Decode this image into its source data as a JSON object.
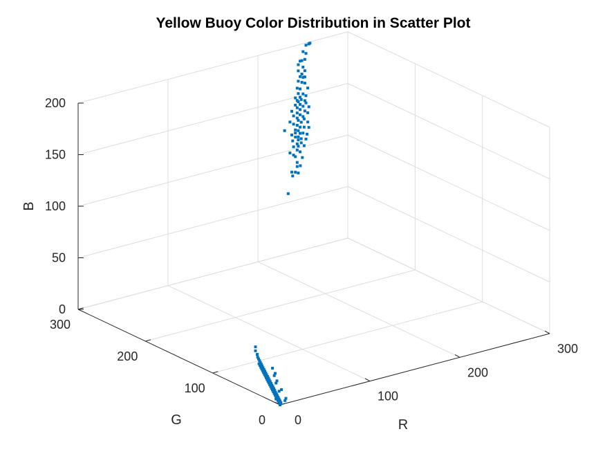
{
  "chart_data": {
    "type": "scatter",
    "projection": "3d",
    "title": "Yellow Buoy Color Distribution in Scatter Plot",
    "xlabel": "R",
    "ylabel": "G",
    "zlabel": "B",
    "xlim": [
      0,
      300
    ],
    "ylim": [
      0,
      300
    ],
    "zlim": [
      0,
      200
    ],
    "xticks": [
      0,
      100,
      200,
      300
    ],
    "yticks": [
      0,
      100,
      200,
      300
    ],
    "zticks": [
      0,
      50,
      100,
      150,
      200
    ],
    "grid": true,
    "marker_color": "#0072BD",
    "series": [
      {
        "points": [
          [
            200,
            255,
            80
          ],
          [
            205,
            255,
            96
          ],
          [
            212,
            256,
            97
          ],
          [
            208,
            255,
            99
          ],
          [
            204,
            255,
            100
          ],
          [
            215,
            257,
            103
          ],
          [
            210,
            255,
            104
          ],
          [
            210,
            255,
            108
          ],
          [
            218,
            258,
            110
          ],
          [
            208,
            255,
            114
          ],
          [
            206,
            255,
            116
          ],
          [
            214,
            256,
            117
          ],
          [
            202,
            255,
            119
          ],
          [
            210,
            255,
            120
          ],
          [
            220,
            258,
            121
          ],
          [
            212,
            256,
            123
          ],
          [
            206,
            255,
            124
          ],
          [
            216,
            257,
            125
          ],
          [
            210,
            255,
            126
          ],
          [
            222,
            258,
            127
          ],
          [
            212,
            256,
            129
          ],
          [
            205,
            255,
            130
          ],
          [
            224,
            259,
            131
          ],
          [
            212,
            256,
            132
          ],
          [
            208,
            255,
            133
          ],
          [
            218,
            257,
            134
          ],
          [
            214,
            256,
            135
          ],
          [
            204,
            255,
            136
          ],
          [
            226,
            259,
            137
          ],
          [
            212,
            256,
            138
          ],
          [
            220,
            258,
            139
          ],
          [
            208,
            255,
            140
          ],
          [
            214,
            256,
            141
          ],
          [
            196,
            255,
            142
          ],
          [
            224,
            258,
            143
          ],
          [
            210,
            255,
            144
          ],
          [
            216,
            257,
            145
          ],
          [
            206,
            255,
            146
          ],
          [
            220,
            258,
            147
          ],
          [
            212,
            256,
            148
          ],
          [
            202,
            255,
            149
          ],
          [
            218,
            257,
            150
          ],
          [
            210,
            255,
            151
          ],
          [
            224,
            258,
            152
          ],
          [
            214,
            256,
            153
          ],
          [
            206,
            255,
            154
          ],
          [
            220,
            257,
            155
          ],
          [
            210,
            255,
            156
          ],
          [
            226,
            259,
            157
          ],
          [
            214,
            256,
            158
          ],
          [
            204,
            255,
            159
          ],
          [
            218,
            257,
            160
          ],
          [
            210,
            255,
            161
          ],
          [
            222,
            258,
            162
          ],
          [
            214,
            256,
            163
          ],
          [
            208,
            255,
            164
          ],
          [
            220,
            257,
            165
          ],
          [
            212,
            256,
            166
          ],
          [
            216,
            257,
            167
          ],
          [
            210,
            255,
            168
          ],
          [
            222,
            258,
            169
          ],
          [
            214,
            256,
            170
          ],
          [
            208,
            255,
            171
          ],
          [
            218,
            257,
            172
          ],
          [
            212,
            256,
            174
          ],
          [
            224,
            258,
            176
          ],
          [
            214,
            256,
            178
          ],
          [
            210,
            255,
            180
          ],
          [
            220,
            257,
            182
          ],
          [
            216,
            256,
            184
          ],
          [
            212,
            256,
            186
          ],
          [
            218,
            257,
            188
          ],
          [
            214,
            256,
            190
          ],
          [
            216,
            256,
            192
          ],
          [
            220,
            257,
            194
          ],
          [
            212,
            256,
            196
          ],
          [
            218,
            257,
            198
          ],
          [
            214,
            256,
            205
          ],
          [
            220,
            257,
            205
          ],
          [
            216,
            256,
            205
          ],
          [
            222,
            258,
            210
          ],
          [
            218,
            257,
            213
          ],
          [
            222,
            258,
            218
          ],
          [
            226,
            259,
            218
          ],
          [
            228,
            260,
            218
          ],
          [
            226,
            259,
            218
          ],
          [
            212,
            256,
            202
          ],
          [
            220,
            257,
            188
          ],
          [
            208,
            255,
            137
          ],
          [
            216,
            257,
            129
          ]
        ]
      },
      {
        "points": [
          [
            0,
            0,
            0
          ],
          [
            2,
            2,
            0
          ],
          [
            4,
            4,
            0
          ],
          [
            3,
            6,
            0
          ],
          [
            6,
            8,
            0
          ],
          [
            5,
            10,
            0
          ],
          [
            8,
            12,
            0
          ],
          [
            7,
            14,
            0
          ],
          [
            10,
            16,
            0
          ],
          [
            9,
            18,
            0
          ],
          [
            12,
            20,
            0
          ],
          [
            11,
            22,
            0
          ],
          [
            14,
            24,
            0
          ],
          [
            13,
            26,
            0
          ],
          [
            16,
            28,
            0
          ],
          [
            15,
            30,
            0
          ],
          [
            18,
            32,
            0
          ],
          [
            17,
            34,
            0
          ],
          [
            20,
            36,
            0
          ],
          [
            19,
            38,
            0
          ],
          [
            22,
            40,
            0
          ],
          [
            21,
            42,
            0
          ],
          [
            24,
            44,
            0
          ],
          [
            23,
            46,
            0
          ],
          [
            26,
            48,
            0
          ],
          [
            25,
            50,
            0
          ],
          [
            28,
            52,
            0
          ],
          [
            27,
            54,
            0
          ],
          [
            30,
            56,
            0
          ],
          [
            29,
            58,
            0
          ],
          [
            32,
            60,
            0
          ],
          [
            31,
            62,
            0
          ],
          [
            34,
            64,
            0
          ],
          [
            33,
            66,
            0
          ],
          [
            36,
            68,
            0
          ],
          [
            35,
            70,
            0
          ],
          [
            38,
            72,
            0
          ],
          [
            37,
            74,
            0
          ],
          [
            40,
            76,
            0
          ],
          [
            39,
            78,
            0
          ],
          [
            42,
            80,
            0
          ],
          [
            41,
            82,
            0
          ],
          [
            44,
            84,
            0
          ],
          [
            43,
            86,
            0
          ],
          [
            46,
            88,
            0
          ],
          [
            45,
            90,
            0
          ],
          [
            48,
            92,
            0
          ],
          [
            47,
            94,
            0
          ],
          [
            50,
            96,
            0
          ],
          [
            52,
            100,
            0
          ],
          [
            54,
            104,
            0
          ],
          [
            56,
            108,
            0
          ],
          [
            60,
            114,
            0
          ],
          [
            64,
            122,
            0
          ],
          [
            70,
            130,
            0
          ],
          [
            6,
            14,
            0
          ],
          [
            10,
            6,
            0
          ],
          [
            14,
            10,
            0
          ],
          [
            20,
            28,
            0
          ],
          [
            24,
            30,
            0
          ],
          [
            30,
            46,
            0
          ],
          [
            34,
            50,
            0
          ],
          [
            40,
            62,
            0
          ],
          [
            44,
            66,
            0
          ],
          [
            50,
            78,
            0
          ]
        ]
      }
    ]
  }
}
